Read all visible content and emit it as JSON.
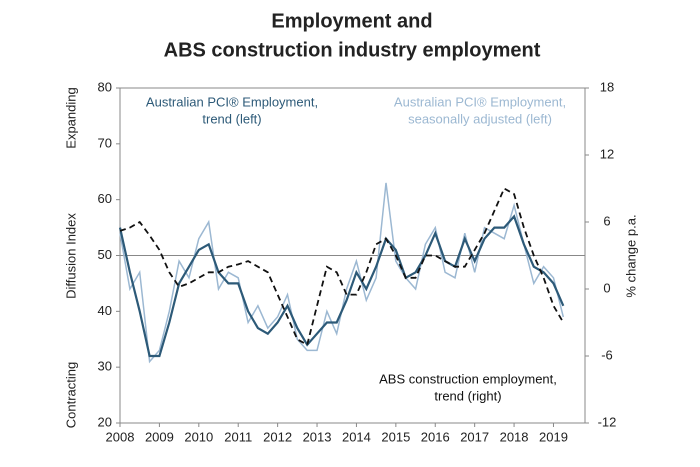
{
  "chart_data": {
    "type": "line",
    "title": [
      "Employment and",
      "ABS construction industry employment"
    ],
    "y_label": "Diffusion Index",
    "y2_label": "% change p.a.",
    "y_top_note": "Expanding",
    "y_bottom_note": "Contracting",
    "x": [
      2008,
      2008.25,
      2008.5,
      2008.75,
      2009,
      2009.25,
      2009.5,
      2009.75,
      2010,
      2010.25,
      2010.5,
      2010.75,
      2011,
      2011.25,
      2011.5,
      2011.75,
      2012,
      2012.25,
      2012.5,
      2012.75,
      2013,
      2013.25,
      2013.5,
      2013.75,
      2014,
      2014.25,
      2014.5,
      2014.75,
      2015,
      2015.25,
      2015.5,
      2015.75,
      2016,
      2016.25,
      2016.5,
      2016.75,
      2017,
      2017.25,
      2017.5,
      2017.75,
      2018,
      2018.25,
      2018.5,
      2018.75,
      2019,
      2019.25
    ],
    "xlim": [
      2008,
      2019.8
    ],
    "xticks": [
      2008,
      2009,
      2010,
      2011,
      2012,
      2013,
      2014,
      2015,
      2016,
      2017,
      2018,
      2019
    ],
    "ylim": [
      20,
      80
    ],
    "yticks": [
      20,
      30,
      40,
      50,
      60,
      70,
      80
    ],
    "y2lim": [
      -12,
      18
    ],
    "y2ticks": [
      -12,
      -6,
      0,
      6,
      12,
      18
    ],
    "hline": 50,
    "series": [
      {
        "name": [
          "Australian PCI® Employment,",
          "seasonally adjusted (left)"
        ],
        "color": "#9cb8d2",
        "dashed": false,
        "values": [
          54,
          44,
          47,
          31,
          33,
          40,
          49,
          46,
          53,
          56,
          44,
          47,
          46,
          38,
          41,
          37,
          39,
          43,
          35,
          33,
          33,
          40,
          36,
          44,
          49,
          42,
          46,
          63,
          49,
          46,
          44,
          52,
          55,
          47,
          46,
          54,
          47,
          55,
          54,
          53,
          59,
          52,
          45,
          48,
          46,
          39
        ]
      },
      {
        "name": [
          "Australian PCI® Employment,",
          "trend (left)"
        ],
        "color": "#2d5a78",
        "dashed": false,
        "values": [
          55,
          47,
          40,
          32,
          32,
          38,
          45,
          48,
          51,
          52,
          47,
          45,
          45,
          40,
          37,
          36,
          38,
          41,
          37,
          34,
          36,
          38,
          38,
          42,
          47,
          44,
          48,
          53,
          51,
          46,
          47,
          50,
          54,
          49,
          48,
          53,
          49,
          53,
          55,
          55,
          57,
          52,
          48,
          47,
          45,
          41
        ]
      },
      {
        "name": [
          "ABS construction employment,",
          "trend (right)"
        ],
        "color": "#111111",
        "dashed": true,
        "axis": "y2",
        "values": [
          5.2,
          5.5,
          6,
          4.8,
          3.5,
          1.5,
          0.2,
          0.5,
          1,
          1.5,
          1.5,
          2,
          2.2,
          2.5,
          2,
          1.5,
          -0.5,
          -2.5,
          -4.5,
          -5,
          -1.5,
          2,
          1.5,
          -0.5,
          -0.5,
          1.5,
          4,
          4.5,
          3,
          1,
          1,
          3,
          3,
          2.5,
          2,
          2,
          3.5,
          5,
          7,
          9,
          8.5,
          5.5,
          3,
          1,
          -1.5,
          -3
        ]
      }
    ]
  }
}
